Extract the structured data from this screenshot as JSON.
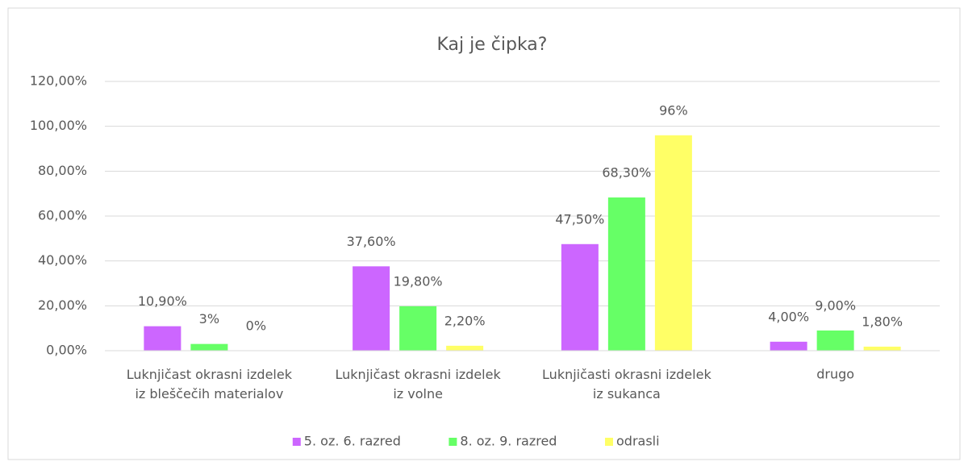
{
  "chart_data": {
    "type": "bar",
    "title": "Kaj je čipka?",
    "categories": [
      "Luknjičast okrasni izdelek iz bleščečih materialov",
      "Luknjičast okrasni izdelek iz volne",
      "Luknjičasti okrasni izdelek iz sukanca",
      "drugo"
    ],
    "series": [
      {
        "name": "5. oz. 6. razred",
        "color": "#cc66ff",
        "values": [
          10.9,
          37.6,
          47.5,
          4.0
        ],
        "value_labels": [
          "10,90%",
          "37,60%",
          "47,50%",
          "4,00%"
        ]
      },
      {
        "name": "8. oz. 9. razred",
        "color": "#66ff66",
        "values": [
          3,
          19.8,
          68.3,
          9.0
        ],
        "value_labels": [
          "3%",
          "19,80%",
          "68,30%",
          "9,00%"
        ]
      },
      {
        "name": "odrasli",
        "color": "#ffff66",
        "values": [
          0,
          2.2,
          96,
          1.8
        ],
        "value_labels": [
          "0%",
          "2,20%",
          "96%",
          "1,80%"
        ]
      }
    ],
    "ylim": [
      0,
      120
    ],
    "yticks": [
      {
        "value": 0,
        "label": "0,00%"
      },
      {
        "value": 20,
        "label": "20,00%"
      },
      {
        "value": 40,
        "label": "40,00%"
      },
      {
        "value": 60,
        "label": "60,00%"
      },
      {
        "value": 80,
        "label": "80,00%"
      },
      {
        "value": 100,
        "label": "100,00%"
      },
      {
        "value": 120,
        "label": "120,00%"
      }
    ],
    "grid": true,
    "legend": "bottom"
  }
}
